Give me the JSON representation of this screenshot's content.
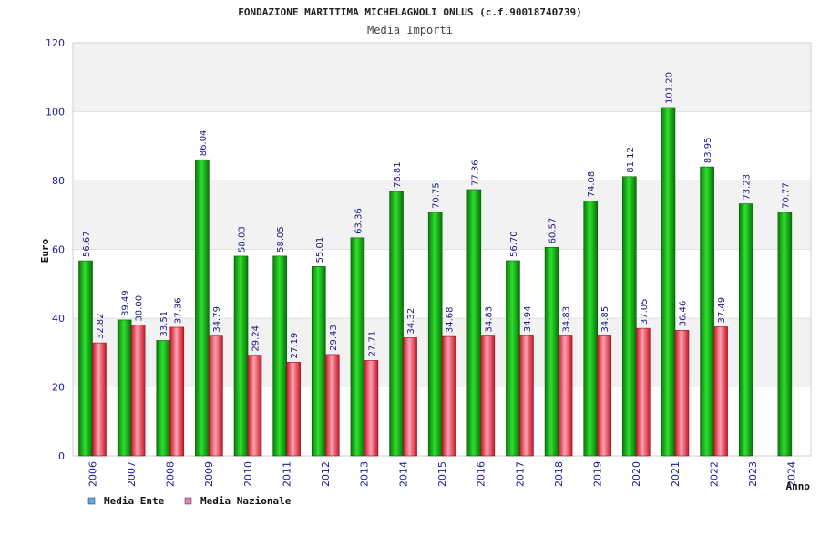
{
  "chart_data": {
    "type": "bar",
    "title": "FONDAZIONE MARITTIMA MICHELAGNOLI ONLUS (c.f.90018740739)",
    "subtitle": "Media Importi",
    "xlabel": "Anno",
    "ylabel": "Euro",
    "ylim": [
      0,
      120
    ],
    "yticks": [
      0,
      20,
      40,
      60,
      80,
      100,
      120
    ],
    "grid": true,
    "legend_position": "bottom-left",
    "categories": [
      "2006",
      "2007",
      "2008",
      "2009",
      "2010",
      "2011",
      "2012",
      "2013",
      "2014",
      "2015",
      "2016",
      "2017",
      "2018",
      "2019",
      "2020",
      "2021",
      "2022",
      "2023",
      "2024"
    ],
    "series": [
      {
        "name": "Media Ente",
        "color": "#10b010",
        "legend_color": "#5aa8f0",
        "values": [
          56.67,
          39.49,
          33.51,
          86.04,
          58.03,
          58.05,
          55.01,
          63.36,
          76.81,
          70.75,
          77.36,
          56.7,
          60.57,
          74.08,
          81.12,
          101.2,
          83.95,
          73.23,
          70.77
        ],
        "labels": [
          "56.67",
          "39.49",
          "33.51",
          "86.04",
          "58.03",
          "58.05",
          "55.01",
          "63.36",
          "76.81",
          "70.75",
          "77.36",
          "56.70",
          "60.57",
          "74.08",
          "81.12",
          "101.20",
          "83.95",
          "73.23",
          "70.77"
        ]
      },
      {
        "name": "Media Nazionale",
        "color": "#e03040",
        "legend_color": "#e080b0",
        "values": [
          32.82,
          38.0,
          37.36,
          34.79,
          29.24,
          27.19,
          29.43,
          27.71,
          34.32,
          34.68,
          34.83,
          34.94,
          34.83,
          34.85,
          37.05,
          36.46,
          37.49,
          null,
          null
        ],
        "labels": [
          "32.82",
          "38.00",
          "37.36",
          "34.79",
          "29.24",
          "27.19",
          "29.43",
          "27.71",
          "34.32",
          "34.68",
          "34.83",
          "34.94",
          "34.83",
          "34.85",
          "37.05",
          "36.46",
          "37.49",
          null,
          null
        ]
      }
    ]
  }
}
